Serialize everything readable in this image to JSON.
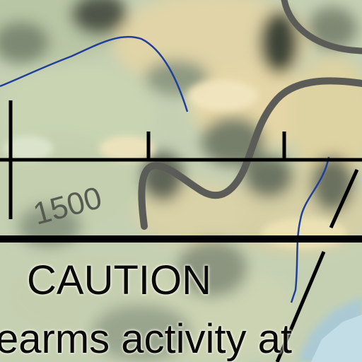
{
  "map": {
    "contour_label": "1500",
    "caution_title": "CAUTION",
    "caution_text": "earms activity at",
    "colors": {
      "terrain_light": "#ddd2a6",
      "terrain_green": "#b9c8a6",
      "terrain_shadow": "#6f7866",
      "road": "#5b5b57",
      "stream": "#1f3f9a",
      "boundary": "#000000",
      "water": "#a9c9d6"
    },
    "icons": [
      "road",
      "stream",
      "range-boundary",
      "contour-label"
    ]
  }
}
